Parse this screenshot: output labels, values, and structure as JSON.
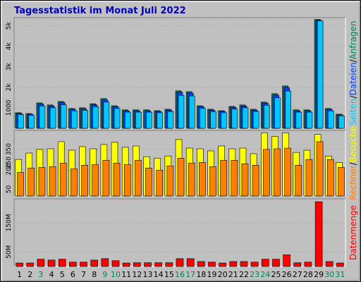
{
  "chart_data": [
    {
      "type": "bar",
      "title": "Tagesstatistik im Monat Juli 2022",
      "ylim": [
        0,
        5400
      ],
      "yticks": [
        1000,
        {
          "value": 2000,
          "label": "2k"
        },
        {
          "value": 3000,
          "label": "3k"
        },
        {
          "value": 4000,
          "label": "4k"
        },
        {
          "value": 5000,
          "label": "5k"
        }
      ],
      "legend_separator": "/",
      "series": [
        {
          "name": "Anfragen",
          "color": "#00805c",
          "values": [
            760,
            720,
            1240,
            1140,
            1310,
            965,
            1000,
            1200,
            1450,
            1100,
            900,
            900,
            900,
            860,
            930,
            1830,
            1790,
            1100,
            930,
            860,
            1070,
            1140,
            930,
            1280,
            1690,
            2070,
            900,
            900,
            5310,
            965,
            690
          ]
        },
        {
          "name": "Dateien",
          "color": "#0040ff",
          "values": [
            730,
            690,
            1190,
            1090,
            1260,
            930,
            960,
            1150,
            1390,
            1060,
            860,
            860,
            860,
            830,
            890,
            1760,
            1720,
            1060,
            890,
            830,
            1030,
            1090,
            890,
            1230,
            1620,
            1990,
            860,
            860,
            5270,
            930,
            660
          ]
        },
        {
          "name": "Seiten",
          "color": "#00c8ff",
          "values": [
            670,
            630,
            1090,
            1000,
            1150,
            850,
            880,
            1060,
            1280,
            970,
            790,
            790,
            790,
            760,
            820,
            1610,
            1580,
            970,
            820,
            760,
            940,
            1000,
            820,
            1130,
            1490,
            1820,
            790,
            790,
            5240,
            850,
            610
          ]
        }
      ]
    },
    {
      "type": "bar",
      "ylim": [
        0,
        490
      ],
      "yticks": [
        50,
        200,
        250,
        350
      ],
      "legend_separator": "/",
      "series": [
        {
          "name": "Besuche",
          "color": "#ffff00",
          "values": [
            273,
            321,
            348,
            353,
            406,
            342,
            369,
            353,
            385,
            401,
            364,
            374,
            294,
            283,
            299,
            422,
            358,
            353,
            337,
            374,
            353,
            358,
            316,
            471,
            444,
            471,
            326,
            342,
            460,
            299,
            251
          ]
        },
        {
          "name": "Rechner",
          "color": "#ff8000",
          "values": [
            176,
            209,
            214,
            219,
            246,
            203,
            230,
            235,
            267,
            246,
            235,
            267,
            209,
            193,
            225,
            283,
            246,
            251,
            219,
            267,
            267,
            241,
            230,
            348,
            353,
            358,
            230,
            273,
            406,
            273,
            214
          ]
        }
      ]
    },
    {
      "type": "bar",
      "ylim": [
        0,
        232
      ],
      "yticks": [
        {
          "value": 50,
          "label": "50M"
        },
        {
          "value": 150,
          "label": "150M"
        }
      ],
      "categories": [
        "1",
        "2",
        "3",
        "4",
        "5",
        "6",
        "7",
        "8",
        "9",
        "10",
        "11",
        "12",
        "13",
        "14",
        "15",
        "16",
        "17",
        "18",
        "19",
        "20",
        "21",
        "22",
        "23",
        "24",
        "25",
        "26",
        "27",
        "28",
        "29",
        "30",
        "31"
      ],
      "category_colors": [
        "#000000",
        "#000000",
        "#00805c",
        "#000000",
        "#000000",
        "#000000",
        "#000000",
        "#000000",
        "#00805c",
        "#00805c",
        "#000000",
        "#000000",
        "#000000",
        "#000000",
        "#000000",
        "#00805c",
        "#00805c",
        "#000000",
        "#000000",
        "#000000",
        "#000000",
        "#000000",
        "#00805c",
        "#00805c",
        "#000000",
        "#000000",
        "#000000",
        "#000000",
        "#000000",
        "#00805c",
        "#00805c"
      ],
      "series": [
        {
          "name": "Datenmenge",
          "color": "#ff0000",
          "values": [
            12,
            12,
            25,
            22,
            25,
            15,
            15,
            22,
            27,
            20,
            12,
            13,
            13,
            13,
            13,
            27,
            27,
            17,
            15,
            12,
            17,
            17,
            15,
            25,
            25,
            40,
            13,
            15,
            222,
            17,
            12
          ]
        }
      ]
    }
  ]
}
